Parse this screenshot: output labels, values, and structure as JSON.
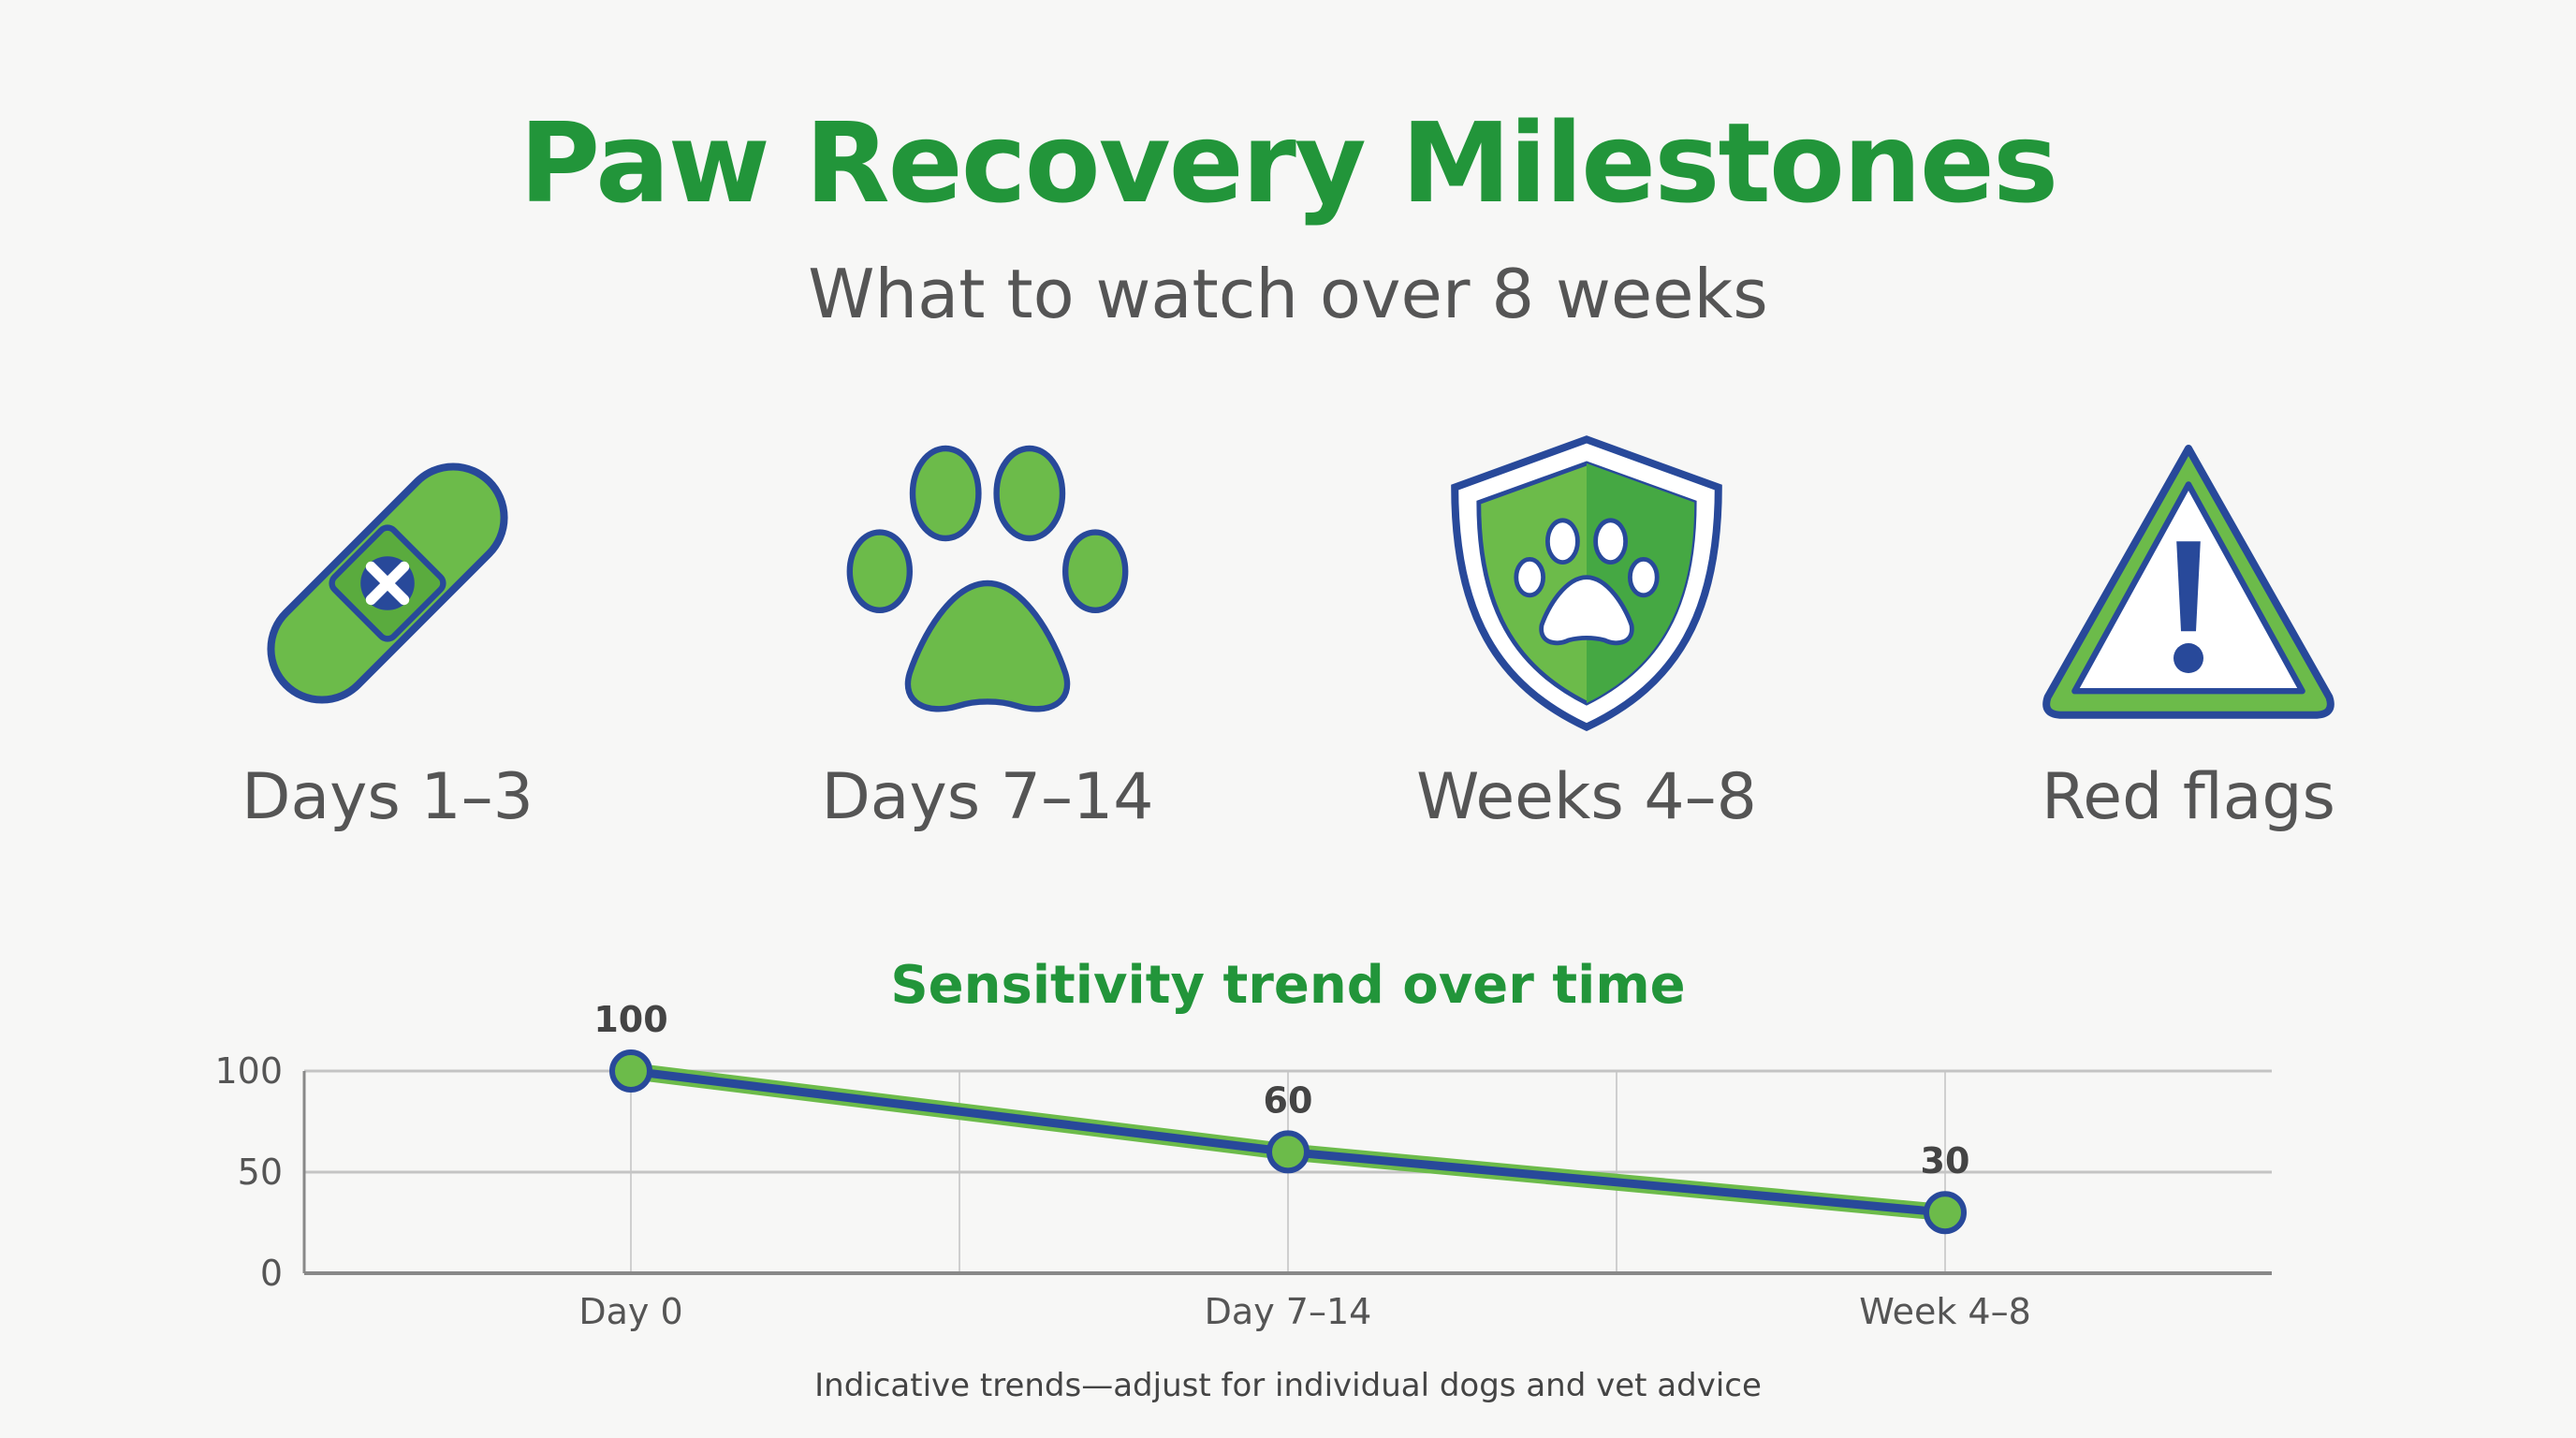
{
  "header": {
    "title": "Paw Recovery Milestones",
    "subtitle": "What to watch over 8 weeks"
  },
  "milestones": [
    {
      "label": "Days 1–3",
      "icon": "bandage-icon"
    },
    {
      "label": "Days 7–14",
      "icon": "paw-print-icon"
    },
    {
      "label": "Weeks 4–8",
      "icon": "shield-paw-icon"
    },
    {
      "label": "Red flags",
      "icon": "warning-triangle-icon"
    }
  ],
  "colors": {
    "green": "#22953a",
    "light_green": "#6cbb4a",
    "navy": "#28499a",
    "text": "#555555"
  },
  "chart_data": {
    "type": "line",
    "title": "Sensitivity trend over time",
    "categories": [
      "Day 0",
      "Day 7–14",
      "Week 4–8"
    ],
    "values": [
      100,
      60,
      30
    ],
    "data_labels": [
      "100",
      "60",
      "30"
    ],
    "ylim": [
      0,
      100
    ],
    "yticks": [
      "0",
      "50",
      "100"
    ],
    "grid": true,
    "xlabel": "",
    "ylabel": ""
  },
  "footnote": "Indicative trends—adjust for individual dogs and vet advice"
}
